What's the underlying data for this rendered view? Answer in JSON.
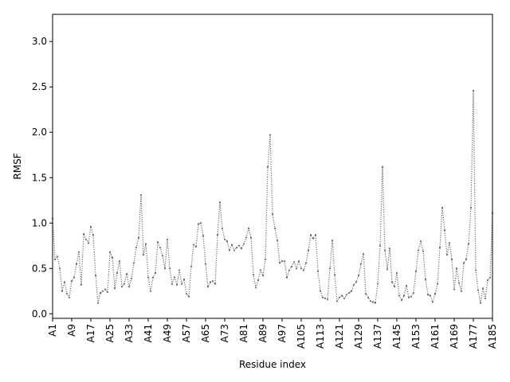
{
  "chart_data": {
    "type": "line",
    "title": "",
    "xlabel": "Residue index",
    "ylabel": "RMSF",
    "xtick_labels": [
      "A1",
      "A9",
      "A17",
      "A25",
      "A33",
      "A41",
      "A49",
      "A57",
      "A65",
      "A73",
      "A81",
      "A89",
      "A97",
      "A105",
      "A113",
      "A121",
      "A129",
      "A137",
      "A145",
      "A153",
      "A161",
      "A169",
      "A177",
      "A185"
    ],
    "yticks": [
      0.0,
      0.5,
      1.0,
      1.5,
      2.0,
      2.5,
      3.0
    ],
    "ytick_labels": [
      "0.0",
      "0.5",
      "1.0",
      "1.5",
      "2.0",
      "2.5",
      "3.0"
    ],
    "xlim": [
      1,
      185
    ],
    "ylim": [
      -0.05,
      3.3
    ],
    "grid": false,
    "line_color": "#6e6e6e",
    "line_style": "dotted",
    "marker": "point",
    "series": [
      {
        "x_start": 1,
        "x_step": 1,
        "values": [
          1.05,
          0.6,
          0.63,
          0.5,
          0.25,
          0.35,
          0.22,
          0.18,
          0.36,
          0.4,
          0.55,
          0.68,
          0.32,
          0.88,
          0.82,
          0.78,
          0.96,
          0.87,
          0.42,
          0.12,
          0.23,
          0.25,
          0.27,
          0.24,
          0.68,
          0.62,
          0.28,
          0.45,
          0.58,
          0.3,
          0.33,
          0.44,
          0.3,
          0.39,
          0.56,
          0.73,
          0.84,
          1.31,
          0.65,
          0.77,
          0.4,
          0.25,
          0.4,
          0.45,
          0.79,
          0.73,
          0.64,
          0.5,
          0.82,
          0.5,
          0.33,
          0.4,
          0.32,
          0.48,
          0.33,
          0.38,
          0.22,
          0.19,
          0.52,
          0.76,
          0.74,
          0.99,
          1.0,
          0.86,
          0.55,
          0.3,
          0.35,
          0.36,
          0.33,
          0.87,
          1.23,
          0.94,
          0.82,
          0.8,
          0.7,
          0.76,
          0.7,
          0.73,
          0.75,
          0.72,
          0.77,
          0.84,
          0.94,
          0.84,
          0.43,
          0.29,
          0.37,
          0.48,
          0.42,
          0.6,
          1.62,
          1.97,
          1.1,
          0.94,
          0.81,
          0.56,
          0.58,
          0.58,
          0.4,
          0.48,
          0.52,
          0.57,
          0.5,
          0.58,
          0.5,
          0.48,
          0.56,
          0.7,
          0.87,
          0.83,
          0.87,
          0.47,
          0.25,
          0.18,
          0.17,
          0.16,
          0.5,
          0.81,
          0.43,
          0.14,
          0.18,
          0.2,
          0.17,
          0.21,
          0.23,
          0.25,
          0.32,
          0.35,
          0.42,
          0.55,
          0.66,
          0.22,
          0.18,
          0.14,
          0.13,
          0.12,
          0.33,
          0.75,
          1.62,
          0.7,
          0.49,
          0.72,
          0.35,
          0.3,
          0.45,
          0.2,
          0.15,
          0.2,
          0.31,
          0.18,
          0.19,
          0.23,
          0.47,
          0.7,
          0.8,
          0.69,
          0.38,
          0.21,
          0.2,
          0.13,
          0.22,
          0.33,
          0.73,
          1.17,
          0.92,
          0.65,
          0.78,
          0.6,
          0.27,
          0.5,
          0.34,
          0.25,
          0.56,
          0.6,
          0.77,
          1.17,
          2.46,
          0.48,
          0.26,
          0.12,
          0.28,
          0.17,
          0.37,
          0.4,
          1.11
        ]
      }
    ]
  }
}
